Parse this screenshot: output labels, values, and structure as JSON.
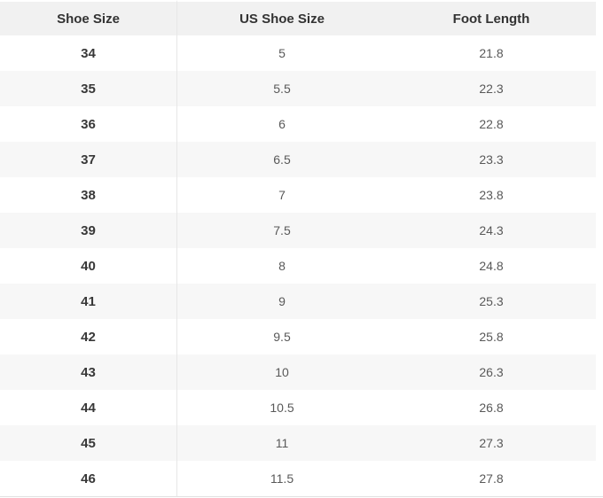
{
  "chart_data": {
    "type": "table",
    "columns": [
      "Shoe Size",
      "US Shoe Size",
      "Foot Length"
    ],
    "rows": [
      [
        34,
        "5",
        "21.8"
      ],
      [
        35,
        "5.5",
        "22.3"
      ],
      [
        36,
        "6",
        "22.8"
      ],
      [
        37,
        "6.5",
        "23.3"
      ],
      [
        38,
        "7",
        "23.8"
      ],
      [
        39,
        "7.5",
        "24.3"
      ],
      [
        40,
        "8",
        "24.8"
      ],
      [
        41,
        "9",
        "25.3"
      ],
      [
        42,
        "9.5",
        "25.8"
      ],
      [
        43,
        "10",
        "26.3"
      ],
      [
        44,
        "10.5",
        "26.8"
      ],
      [
        45,
        "11",
        "27.3"
      ],
      [
        46,
        "11.5",
        "27.8"
      ]
    ],
    "layout": {
      "striped": true,
      "stripe_pattern": "even-rows-gray",
      "column_divider_after_first_column": true
    }
  },
  "colors": {
    "header_bg": "#f1f1f1",
    "stripe_bg": "#f7f7f7",
    "header_text": "#333333",
    "first_column_text": "#383838",
    "body_text": "#595959",
    "column_divider": "#e7e7e7",
    "bottom_border": "#e1e1e1"
  }
}
